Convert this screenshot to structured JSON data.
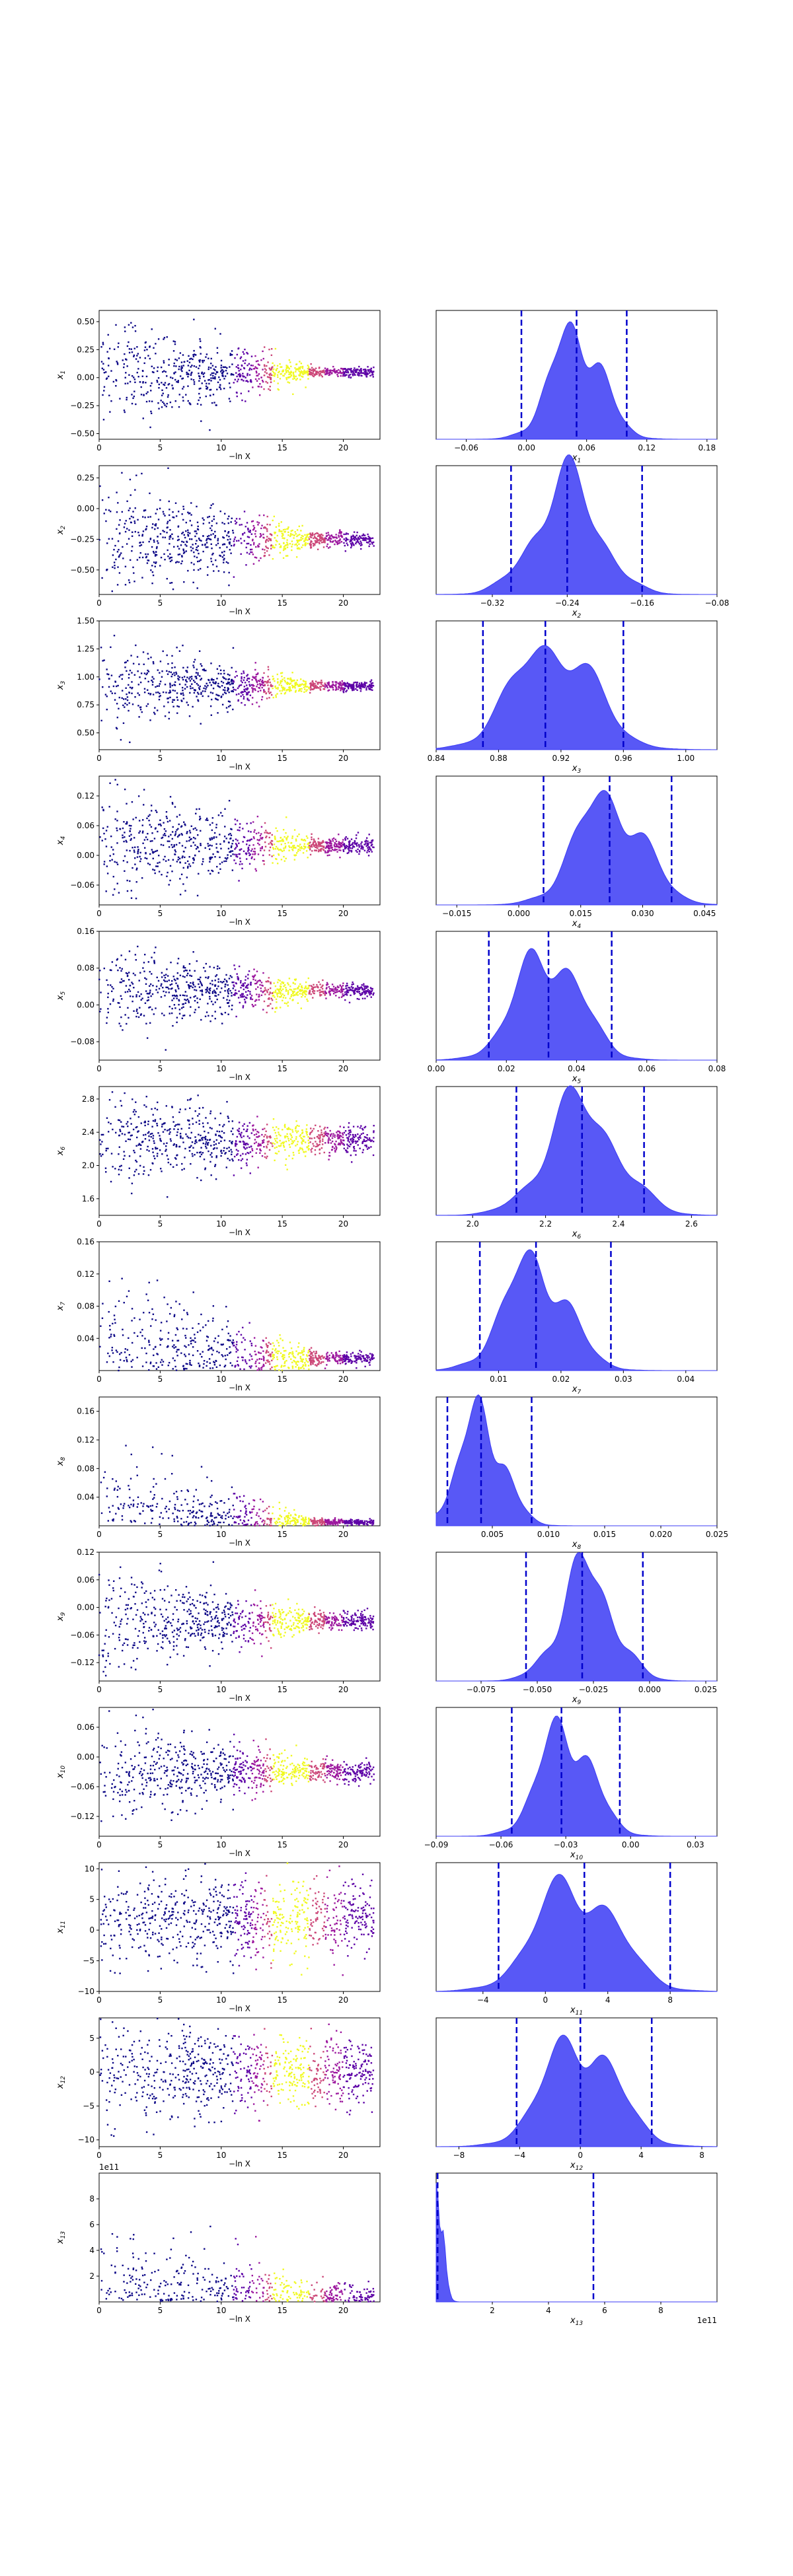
{
  "figure": {
    "xlabel_left": "−ln X",
    "palette": [
      "#0d0887",
      "#5c01a6",
      "#9c179e",
      "#cc4778",
      "#f0f921"
    ],
    "trace_color": "#0d0887",
    "density_fill": "#3b3bf5",
    "quantile_line_color": "#0000cc"
  },
  "chart_data": [
    {
      "type": "scatter",
      "param": "x1",
      "ylabel": "x",
      "sub": "1",
      "xlim": [
        0,
        23
      ],
      "xticks": [
        "0",
        "5",
        "10",
        "15",
        "20"
      ],
      "yticks": [
        "0.50",
        "0.25",
        "0.00",
        "-0.25",
        "-0.50"
      ],
      "ylim": [
        -0.55,
        0.6
      ],
      "center": 0.05,
      "spread_start": 0.25,
      "spread_end": 0.02,
      "hist_xlabel": "x",
      "hist_xticks": [
        "-0.06",
        "0.00",
        "0.06",
        "0.12",
        "0.18"
      ],
      "hist_xlim": [
        -0.09,
        0.19
      ],
      "hist_mean": 0.05,
      "hist_sd": 0.025,
      "quantiles": [
        -0.005,
        0.05,
        0.1
      ]
    },
    {
      "type": "scatter",
      "param": "x2",
      "ylabel": "x",
      "sub": "2",
      "xlim": [
        0,
        23
      ],
      "xticks": [
        "0",
        "5",
        "10",
        "15",
        "20"
      ],
      "yticks": [
        "0.25",
        "0.00",
        "-0.25",
        "-0.50"
      ],
      "ylim": [
        -0.7,
        0.35
      ],
      "center": -0.25,
      "spread_start": 0.25,
      "spread_end": 0.03,
      "hist_xlabel": "x",
      "hist_xticks": [
        "-0.32",
        "-0.24",
        "-0.16",
        "-0.08"
      ],
      "hist_xlim": [
        -0.38,
        -0.08
      ],
      "hist_mean": -0.24,
      "hist_sd": 0.035,
      "quantiles": [
        -0.3,
        -0.24,
        -0.16
      ]
    },
    {
      "type": "scatter",
      "param": "x3",
      "ylabel": "x",
      "sub": "3",
      "xlim": [
        0,
        23
      ],
      "xticks": [
        "0",
        "5",
        "10",
        "15",
        "20"
      ],
      "yticks": [
        "1.50",
        "1.25",
        "1.00",
        "0.75",
        "0.50"
      ],
      "ylim": [
        0.35,
        1.5
      ],
      "center": 0.92,
      "spread_start": 0.2,
      "spread_end": 0.02,
      "hist_xlabel": "x",
      "hist_xticks": [
        "0.84",
        "0.88",
        "0.92",
        "0.96",
        "1.00"
      ],
      "hist_xlim": [
        0.84,
        1.02
      ],
      "hist_mean": 0.915,
      "hist_sd": 0.025,
      "quantiles": [
        0.87,
        0.91,
        0.96
      ]
    },
    {
      "type": "scatter",
      "param": "x4",
      "ylabel": "x",
      "sub": "4",
      "xlim": [
        0,
        23
      ],
      "xticks": [
        "0",
        "5",
        "10",
        "15",
        "20"
      ],
      "yticks": [
        "0.12",
        "0.06",
        "0.00",
        "-0.06"
      ],
      "ylim": [
        -0.1,
        0.16
      ],
      "center": 0.02,
      "spread_start": 0.06,
      "spread_end": 0.008,
      "hist_xlabel": "x",
      "hist_xticks": [
        "-0.015",
        "0.000",
        "0.015",
        "0.030",
        "0.045"
      ],
      "hist_xlim": [
        -0.02,
        0.048
      ],
      "hist_mean": 0.022,
      "hist_sd": 0.008,
      "quantiles": [
        0.006,
        0.022,
        0.037
      ]
    },
    {
      "type": "scatter",
      "param": "x5",
      "ylabel": "x",
      "sub": "5",
      "xlim": [
        0,
        23
      ],
      "xticks": [
        "0",
        "5",
        "10",
        "15",
        "20"
      ],
      "yticks": [
        "0.16",
        "0.08",
        "0.00",
        "-0.08"
      ],
      "ylim": [
        -0.12,
        0.16
      ],
      "center": 0.03,
      "spread_start": 0.05,
      "spread_end": 0.008,
      "hist_xlabel": "x",
      "hist_xticks": [
        "0.00",
        "0.02",
        "0.04",
        "0.06",
        "0.08"
      ],
      "hist_xlim": [
        0,
        0.08
      ],
      "hist_mean": 0.032,
      "hist_sd": 0.009,
      "quantiles": [
        0.015,
        0.032,
        0.05
      ]
    },
    {
      "type": "scatter",
      "param": "x6",
      "ylabel": "x",
      "sub": "6",
      "xlim": [
        0,
        23
      ],
      "xticks": [
        "0",
        "5",
        "10",
        "15",
        "20"
      ],
      "yticks": [
        "2.8",
        "2.4",
        "2.0",
        "1.6"
      ],
      "ylim": [
        1.4,
        2.95
      ],
      "center": 2.3,
      "spread_start": 0.3,
      "spread_end": 0.08,
      "hist_xlabel": "x",
      "hist_xticks": [
        "2.0",
        "2.2",
        "2.4",
        "2.6"
      ],
      "hist_xlim": [
        1.9,
        2.67
      ],
      "hist_mean": 2.3,
      "hist_sd": 0.1,
      "quantiles": [
        2.12,
        2.3,
        2.47
      ]
    },
    {
      "type": "scatter",
      "param": "x7",
      "ylabel": "x",
      "sub": "7",
      "xlim": [
        0,
        23
      ],
      "xticks": [
        "0",
        "5",
        "10",
        "15",
        "20"
      ],
      "yticks": [
        "0.16",
        "0.12",
        "0.08",
        "0.04"
      ],
      "ylim": [
        0,
        0.16
      ],
      "center": 0.015,
      "spread_start": 0.05,
      "spread_end": 0.004,
      "hist_xlabel": "x",
      "hist_xticks": [
        "0.01",
        "0.02",
        "0.03",
        "0.04"
      ],
      "hist_xlim": [
        0,
        0.045
      ],
      "hist_mean": 0.016,
      "hist_sd": 0.005,
      "quantiles": [
        0.007,
        0.016,
        0.028
      ]
    },
    {
      "type": "scatter",
      "param": "x8",
      "ylabel": "x",
      "sub": "8",
      "xlim": [
        0,
        23
      ],
      "xticks": [
        "0",
        "5",
        "10",
        "15",
        "20"
      ],
      "yticks": [
        "0.16",
        "0.12",
        "0.08",
        "0.04"
      ],
      "ylim": [
        0,
        0.18
      ],
      "center": 0.005,
      "spread_start": 0.05,
      "spread_end": 0.002,
      "hist_xlabel": "x",
      "hist_xticks": [
        "0.005",
        "0.010",
        "0.015",
        "0.020",
        "0.025"
      ],
      "hist_xlim": [
        0,
        0.025
      ],
      "hist_mean": 0.004,
      "hist_sd": 0.002,
      "quantiles": [
        0.001,
        0.004,
        0.0085
      ]
    },
    {
      "type": "scatter",
      "param": "x9",
      "ylabel": "x",
      "sub": "9",
      "xlim": [
        0,
        23
      ],
      "xticks": [
        "0",
        "5",
        "10",
        "15",
        "20"
      ],
      "yticks": [
        "0.12",
        "0.06",
        "0.00",
        "-0.06",
        "-0.12"
      ],
      "ylim": [
        -0.16,
        0.12
      ],
      "center": -0.03,
      "spread_start": 0.06,
      "spread_end": 0.01,
      "hist_xlabel": "x",
      "hist_xticks": [
        "-0.075",
        "-0.050",
        "-0.025",
        "0.000",
        "0.025"
      ],
      "hist_xlim": [
        -0.095,
        0.03
      ],
      "hist_mean": -0.028,
      "hist_sd": 0.012,
      "quantiles": [
        -0.055,
        -0.03,
        -0.003
      ]
    },
    {
      "type": "scatter",
      "param": "x10",
      "ylabel": "x",
      "sub": "10",
      "xlim": [
        0,
        23
      ],
      "xticks": [
        "0",
        "5",
        "10",
        "15",
        "20"
      ],
      "yticks": [
        "0.06",
        "0.00",
        "-0.06",
        "-0.12"
      ],
      "ylim": [
        -0.16,
        0.1
      ],
      "center": -0.03,
      "spread_start": 0.05,
      "spread_end": 0.01,
      "hist_xlabel": "x",
      "hist_xticks": [
        "-0.09",
        "-0.06",
        "-0.03",
        "0.00",
        "0.03"
      ],
      "hist_xlim": [
        -0.09,
        0.04
      ],
      "hist_mean": -0.03,
      "hist_sd": 0.012,
      "quantiles": [
        -0.055,
        -0.032,
        -0.005
      ]
    },
    {
      "type": "scatter",
      "param": "x11",
      "ylabel": "x",
      "sub": "11",
      "xlim": [
        0,
        23
      ],
      "xticks": [
        "0",
        "5",
        "10",
        "15",
        "20"
      ],
      "yticks": [
        "10",
        "5",
        "0",
        "-5",
        "-10"
      ],
      "ylim": [
        -10,
        11
      ],
      "center": 2,
      "spread_start": 4,
      "spread_end": 3,
      "hist_xlabel": "x",
      "hist_xticks": [
        "-4",
        "0",
        "4",
        "8"
      ],
      "hist_xlim": [
        -7,
        11
      ],
      "hist_mean": 2,
      "hist_sd": 2.5,
      "quantiles": [
        -3,
        2.5,
        8
      ]
    },
    {
      "type": "scatter",
      "param": "x12",
      "ylabel": "x",
      "sub": "12",
      "xlim": [
        0,
        23
      ],
      "xticks": [
        "0",
        "5",
        "10",
        "15",
        "20"
      ],
      "yticks": [
        "5",
        "0",
        "-5",
        "-10"
      ],
      "ylim": [
        -11,
        8
      ],
      "center": 0,
      "spread_start": 4,
      "spread_end": 2.5,
      "hist_xlabel": "x",
      "hist_xticks": [
        "-8",
        "-4",
        "0",
        "4",
        "8"
      ],
      "hist_xlim": [
        -9.5,
        9
      ],
      "hist_mean": 0,
      "hist_sd": 2.3,
      "quantiles": [
        -4.2,
        0,
        4.7
      ]
    },
    {
      "type": "scatter",
      "param": "x13",
      "ylabel": "x",
      "sub": "13",
      "xlim": [
        0,
        23
      ],
      "xticks": [
        "0",
        "5",
        "10",
        "15",
        "20"
      ],
      "yticks": [
        "8",
        "6",
        "4",
        "2"
      ],
      "ylim": [
        0,
        10
      ],
      "yoffset": "1e11",
      "center": 0.1,
      "spread_start": 3,
      "spread_end": 0.6,
      "hist_xlabel": "x",
      "hist_xticks": [
        "2",
        "4",
        "6",
        "8"
      ],
      "hist_xlim": [
        0,
        10
      ],
      "hist_xoffset": "1e11",
      "hist_mean": 0.05,
      "hist_sd": 0.2,
      "quantiles": [
        0.05,
        0.05,
        5.6
      ]
    }
  ]
}
